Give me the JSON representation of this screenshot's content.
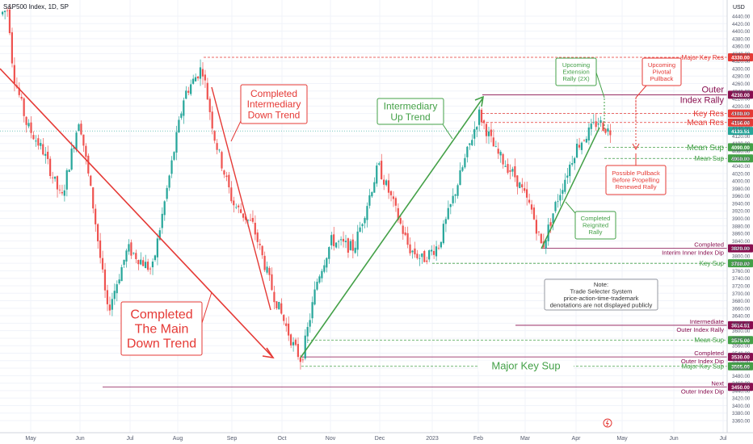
{
  "header": {
    "symbol": "S&P500 Index, 1D, SP",
    "currency": "USD"
  },
  "chart_data": {
    "type": "candlestick",
    "y_ticks": [
      3360,
      3380,
      3400,
      3420,
      3440,
      3460,
      3480,
      3500,
      3520,
      3540,
      3560,
      3580,
      3600,
      3620,
      3640,
      3660,
      3680,
      3700,
      3720,
      3740,
      3760,
      3780,
      3800,
      3820,
      3840,
      3860,
      3880,
      3900,
      3920,
      3940,
      3960,
      3980,
      4000,
      4020,
      4040,
      4060,
      4080,
      4100,
      4120,
      4140,
      4160,
      4180,
      4200,
      4220,
      4240,
      4260,
      4280,
      4300,
      4320,
      4340,
      4360,
      4380,
      4400,
      4420,
      4440
    ],
    "y_ticks_shown": [
      "3360.00",
      "3380.00",
      "3400.00",
      "3420.00",
      "3440.00",
      "3460.00",
      "3480.00",
      "3500.00",
      "3520.00",
      "3540.00",
      "3560.00",
      "3580.00",
      "3600.00",
      "3620.00",
      "3640.00",
      "3660.00",
      "3680.00",
      "3700.00",
      "3720.00",
      "3740.00",
      "3760.00",
      "3780.00",
      "3800.00",
      "3820.00",
      "3840.00",
      "3860.00",
      "3880.00",
      "3900.00",
      "3920.00",
      "3940.00",
      "3960.00",
      "3980.00",
      "4000.00",
      "4020.00",
      "4040.00",
      "4060.00",
      "4080.00",
      "4100.00",
      "4120.00",
      "4140.00",
      "4160.00",
      "4180.00",
      "4200.00",
      "4220.00",
      "4240.00",
      "4260.00",
      "4280.00",
      "4300.00",
      "4320.00",
      "4340.00",
      "4360.00",
      "4380.00",
      "4400.00",
      "4420.00",
      "4440.00"
    ],
    "ylim": [
      3345,
      4460
    ],
    "x_labels": [
      "May",
      "Jun",
      "Jul",
      "Aug",
      "Sep",
      "Oct",
      "Nov",
      "Dec",
      "2023",
      "Feb",
      "Mar",
      "Apr",
      "May",
      "Jun",
      "Jul"
    ],
    "colors": {
      "up": "#26a69a",
      "down": "#ef5350",
      "resistance": "#e53935",
      "support": "#43a047",
      "purple": "#880e4f"
    },
    "levels": [
      {
        "price": 4330,
        "price_label": "4330.00",
        "label": "Major Key Res",
        "kind": "res",
        "style": "dash"
      },
      {
        "price": 4230,
        "price_label": "4230.00",
        "label": "Outer Index Rally",
        "kind": "purple",
        "style": "solid"
      },
      {
        "price": 4180,
        "price_label": "4180.00",
        "label": "Key Res",
        "kind": "res",
        "style": "dash"
      },
      {
        "price": 4156,
        "price_label": "4156.00",
        "label": "Mean Res",
        "kind": "res",
        "style": "dash"
      },
      {
        "price": 4133.51,
        "price_label": "4133.51",
        "label": "",
        "kind": "last",
        "style": "none"
      },
      {
        "price": 4090,
        "price_label": "4090.00",
        "label": "Mean Sup",
        "kind": "sup",
        "style": "dash"
      },
      {
        "price": 4060,
        "price_label": "4060.00",
        "label": "Mean Sup",
        "kind": "sup",
        "style": "dash"
      },
      {
        "price": 3820,
        "price_label": "3820.00",
        "label": "Completed Interim Inner Index Dip",
        "kind": "purple",
        "style": "solid"
      },
      {
        "price": 3780,
        "price_label": "3780.00",
        "label": "Key Sup",
        "kind": "sup",
        "style": "dash"
      },
      {
        "price": 3614.51,
        "price_label": "3614.51",
        "label": "Intermediate Outer Index Rally",
        "kind": "purple",
        "style": "solid"
      },
      {
        "price": 3575,
        "price_label": "3575.00",
        "label": "Mean Sup",
        "kind": "sup",
        "style": "dash"
      },
      {
        "price": 3530,
        "price_label": "3530.00",
        "label": "Completed Outer Index Dip",
        "kind": "purple",
        "style": "solid"
      },
      {
        "price": 3505,
        "price_label": "3505.00",
        "label": "Major Key Sup",
        "kind": "sup",
        "style": "dash"
      },
      {
        "price": 3450,
        "price_label": "3450.00",
        "label": "Next Outer Index Dip",
        "kind": "purple",
        "style": "solid"
      }
    ],
    "annotations": {
      "main_down": "Completed The Main Down Trend",
      "intermediary_down": "Completed Intermediary Down Trend",
      "intermediary_up": "Intermediary Up Trend",
      "reignited": "Completed Reignited Rally",
      "upcoming_ext": "Upcoming Extension Rally (2X)",
      "upcoming_pivot": "Upcoming Pivotal Pullback",
      "possible_pullback": "Possible Pullback Before Propelling Renewed Rally",
      "note_title": "Note:",
      "note_body": "Trade Selecter System price-action-time-trademark denotations are not displayed publicly"
    }
  }
}
